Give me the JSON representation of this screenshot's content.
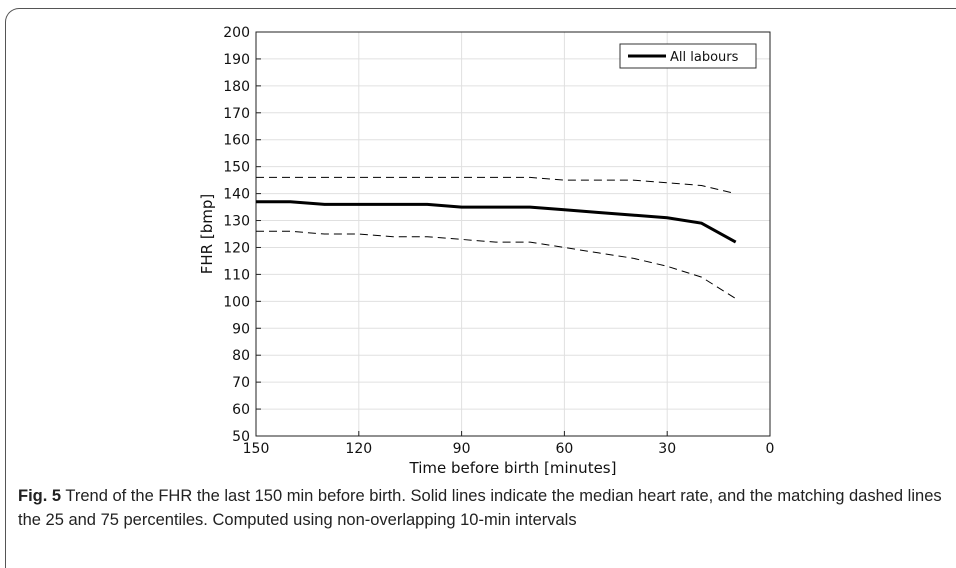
{
  "figure": {
    "label": "Fig. 5",
    "caption": "Trend of the FHR the last 150 min before birth. Solid lines indicate the median heart rate, and the matching dashed lines the 25 and 75 percentiles. Computed using non-overlapping 10-min intervals"
  },
  "chart_data": {
    "type": "line",
    "xlabel": "Time before birth [minutes]",
    "ylabel": "FHR [bmp]",
    "xlim": [
      150,
      0
    ],
    "ylim": [
      50,
      200
    ],
    "x_reversed": true,
    "xticks": [
      "150",
      "120",
      "90",
      "60",
      "30",
      "0"
    ],
    "yticks": [
      "50",
      "60",
      "70",
      "80",
      "90",
      "100",
      "110",
      "120",
      "130",
      "140",
      "150",
      "160",
      "170",
      "180",
      "190",
      "200"
    ],
    "grid": true,
    "legend": {
      "position": "top-right",
      "entries": [
        "All labours"
      ]
    },
    "series": [
      {
        "name": "All labours",
        "style": "solid",
        "x": [
          150,
          140,
          130,
          120,
          110,
          100,
          90,
          80,
          70,
          60,
          50,
          40,
          30,
          20,
          10
        ],
        "values": [
          137,
          137,
          136,
          136,
          136,
          136,
          135,
          135,
          135,
          134,
          133,
          132,
          131,
          129,
          122
        ]
      },
      {
        "style": "dashed",
        "x": [
          150,
          140,
          130,
          120,
          110,
          100,
          90,
          80,
          70,
          60,
          50,
          40,
          30,
          20,
          10
        ],
        "values": [
          146,
          146,
          146,
          146,
          146,
          146,
          146,
          146,
          146,
          145,
          145,
          145,
          144,
          143,
          140
        ]
      },
      {
        "style": "dashed",
        "x": [
          150,
          140,
          130,
          120,
          110,
          100,
          90,
          80,
          70,
          60,
          50,
          40,
          30,
          20,
          10
        ],
        "values": [
          126,
          126,
          125,
          125,
          124,
          124,
          123,
          122,
          122,
          120,
          118,
          116,
          113,
          109,
          101
        ]
      }
    ]
  }
}
